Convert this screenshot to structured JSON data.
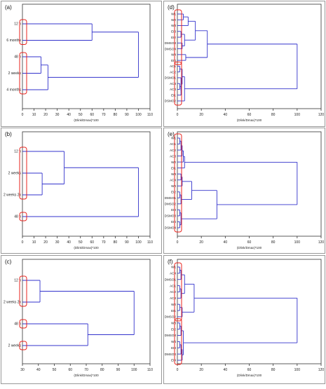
{
  "chart_data": [
    {
      "type": "dendrogram",
      "panel_label": "(a)",
      "xlabel": "(Dlink/Dmax)*100",
      "xlim": [
        0,
        110
      ],
      "xticks": [
        "0",
        "10",
        "20",
        "30",
        "40",
        "50",
        "60",
        "70",
        "80",
        "90",
        "100",
        "110"
      ],
      "leaves": [
        "12 h",
        "6 months",
        "48 h",
        "2 weeks",
        "4 months"
      ],
      "merges": [
        {
          "a": "L2",
          "b": "L3",
          "h": 16
        },
        {
          "a": "N0",
          "b": "L4",
          "h": 22
        },
        {
          "a": "L0",
          "b": "L1",
          "h": 60
        },
        {
          "a": "N2",
          "b": "N1",
          "h": 100
        }
      ]
    },
    {
      "type": "dendrogram",
      "panel_label": "(b)",
      "xlabel": "(Dlink/Dmax)*100",
      "xlim": [
        0,
        110
      ],
      "xticks": [
        "0",
        "10",
        "20",
        "30",
        "40",
        "50",
        "60",
        "70",
        "80",
        "90",
        "100",
        "110"
      ],
      "leaves": [
        "12 h",
        "2 weeks",
        "2 weeks 2x",
        "48 h"
      ],
      "merges": [
        {
          "a": "L1",
          "b": "L2",
          "h": 17
        },
        {
          "a": "L0",
          "b": "N0",
          "h": 36
        },
        {
          "a": "N1",
          "b": "L3",
          "h": 100
        }
      ]
    },
    {
      "type": "dendrogram",
      "panel_label": "(c)",
      "xlabel": "(Dlink/Dmax)*100",
      "xlim": [
        30,
        110
      ],
      "xticks": [
        "30",
        "40",
        "50",
        "60",
        "70",
        "80",
        "90",
        "100",
        "110"
      ],
      "leaves": [
        "12 h",
        "2 weeks 2x",
        "48 h",
        "2 weeks"
      ],
      "merges": [
        {
          "a": "L0",
          "b": "L1",
          "h": 41
        },
        {
          "a": "L2",
          "b": "L3",
          "h": 71
        },
        {
          "a": "N0",
          "b": "N1",
          "h": 100
        }
      ]
    },
    {
      "type": "dendrogram",
      "panel_label": "(d)",
      "xlabel": "(Dlink/Dmax)*100",
      "xlim": [
        0,
        120
      ],
      "xticks": [
        "0",
        "20",
        "40",
        "60",
        "80",
        "100",
        "120"
      ],
      "leaves": [
        "W1",
        "W2",
        "W3",
        "EI3",
        "EI2",
        "DMSO3",
        "DMSO4",
        "W4",
        "EI4",
        "AC1",
        "AC2",
        "DSMO1",
        "AC3",
        "AC4",
        "EI1",
        "DSMO2"
      ],
      "merges": [
        {
          "a": "L0",
          "b": "L1",
          "h": 5
        },
        {
          "a": "L3",
          "b": "L4",
          "h": 3
        },
        {
          "a": "L5",
          "b": "L6",
          "h": 4
        },
        {
          "a": "N1",
          "b": "N2",
          "h": 6
        },
        {
          "a": "L7",
          "b": "L8",
          "h": 7
        },
        {
          "a": "N0",
          "b": "L2",
          "h": 9
        },
        {
          "a": "N5",
          "b": "N3",
          "h": 15
        },
        {
          "a": "N6",
          "b": "N4",
          "h": 25
        },
        {
          "a": "L9",
          "b": "L10",
          "h": 2
        },
        {
          "a": "L12",
          "b": "L13",
          "h": 2
        },
        {
          "a": "N9",
          "b": "L14",
          "h": 3
        },
        {
          "a": "L11",
          "b": "N10",
          "h": 3
        },
        {
          "a": "N8",
          "b": "N11",
          "h": 4
        },
        {
          "a": "N12",
          "b": "L15",
          "h": 6
        },
        {
          "a": "N7",
          "b": "N13",
          "h": 100
        }
      ]
    },
    {
      "type": "dendrogram",
      "panel_label": "(e)",
      "xlabel": "(Dlink/Dmax)*100",
      "xlim": [
        0,
        120
      ],
      "xticks": [
        "0",
        "20",
        "40",
        "60",
        "80",
        "100",
        "120"
      ],
      "leaves": [
        "W1",
        "AC1",
        "AC2",
        "AC3",
        "W2",
        "EI1",
        "W3",
        "AC4",
        "W4",
        "EI2",
        "DMSO1",
        "DMSO2",
        "EI3",
        "DSMO3",
        "EI4",
        "DSMO4"
      ],
      "merges": [
        {
          "a": "L0",
          "b": "L1",
          "h": 2
        },
        {
          "a": "N0",
          "b": "L2",
          "h": 3
        },
        {
          "a": "N1",
          "b": "L3",
          "h": 4
        },
        {
          "a": "N2",
          "b": "L4",
          "h": 5
        },
        {
          "a": "N3",
          "b": "L5",
          "h": 6
        },
        {
          "a": "L6",
          "b": "L7",
          "h": 3
        },
        {
          "a": "N5",
          "b": "L8",
          "h": 4
        },
        {
          "a": "L9",
          "b": "L10",
          "h": 2
        },
        {
          "a": "N7",
          "b": "L11",
          "h": 3
        },
        {
          "a": "N6",
          "b": "N8",
          "h": 12
        },
        {
          "a": "L12",
          "b": "L13",
          "h": 2
        },
        {
          "a": "L14",
          "b": "L15",
          "h": 2
        },
        {
          "a": "N10",
          "b": "N11",
          "h": 3
        },
        {
          "a": "N9",
          "b": "N12",
          "h": 33
        },
        {
          "a": "N4",
          "b": "N13",
          "h": 100
        }
      ]
    },
    {
      "type": "dendrogram",
      "panel_label": "(f)",
      "xlabel": "(Dlink/Dmax)*100",
      "xlim": [
        0,
        120
      ],
      "xticks": [
        "0",
        "20",
        "40",
        "60",
        "80",
        "100",
        "120"
      ],
      "leaves": [
        "W1",
        "AC4",
        "DMSO1",
        "AC1",
        "AC2",
        "AC3",
        "W2",
        "EI1",
        "DMSO2",
        "W3",
        "EI2",
        "DMSO3",
        "W4",
        "EI3",
        "DMSO4",
        "EI4"
      ],
      "merges": [
        {
          "a": "L0",
          "b": "L1",
          "h": 2
        },
        {
          "a": "N0",
          "b": "L2",
          "h": 3
        },
        {
          "a": "L3",
          "b": "L4",
          "h": 2
        },
        {
          "a": "N2",
          "b": "L5",
          "h": 3
        },
        {
          "a": "N1",
          "b": "N3",
          "h": 6
        },
        {
          "a": "L6",
          "b": "L7",
          "h": 2
        },
        {
          "a": "N5",
          "b": "L8",
          "h": 4
        },
        {
          "a": "N4",
          "b": "N6",
          "h": 14
        },
        {
          "a": "L9",
          "b": "L10",
          "h": 2
        },
        {
          "a": "N8",
          "b": "L11",
          "h": 3
        },
        {
          "a": "L12",
          "b": "L13",
          "h": 2
        },
        {
          "a": "N10",
          "b": "L14",
          "h": 3
        },
        {
          "a": "N11",
          "b": "L15",
          "h": 4
        },
        {
          "a": "N9",
          "b": "N12",
          "h": 5
        },
        {
          "a": "N7",
          "b": "N13",
          "h": 100
        }
      ]
    }
  ],
  "colors": {
    "line": "#3333cc",
    "highlight": "#e8231c",
    "axis": "#333333",
    "frame": "#999999"
  }
}
